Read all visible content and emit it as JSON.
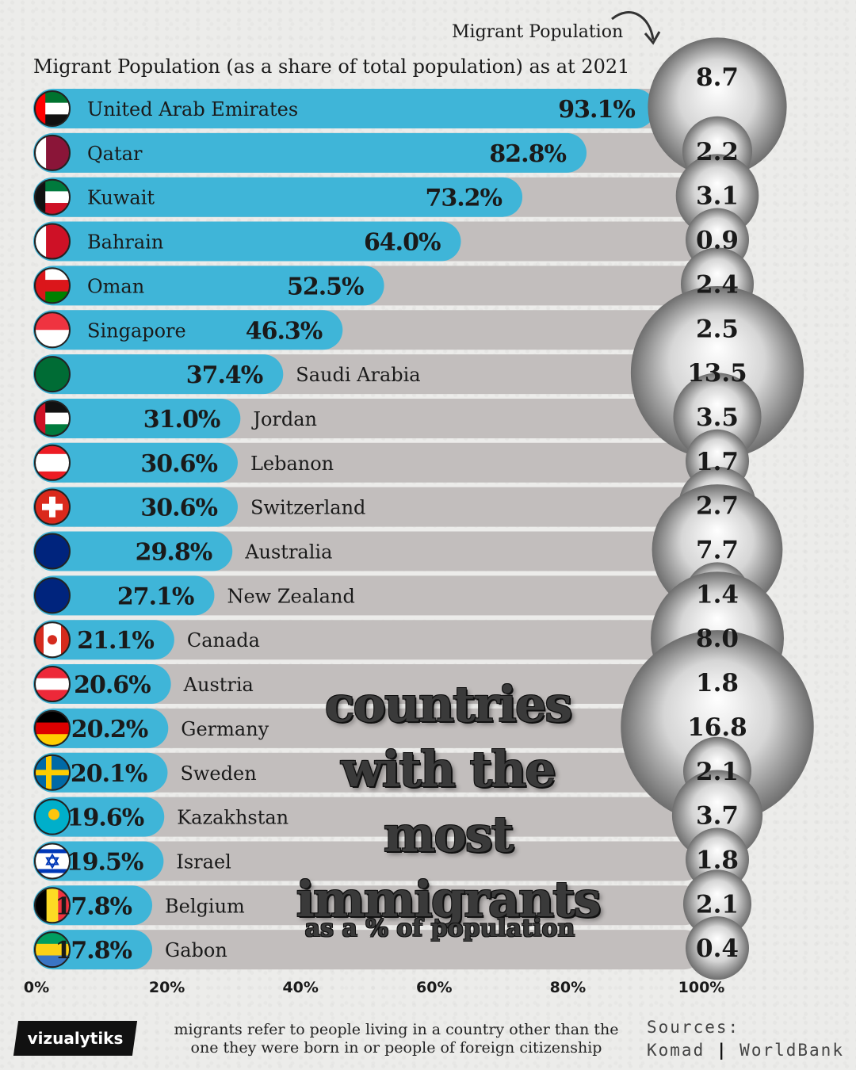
{
  "heading": "Migrant Population (as a share of total population) as at 2021",
  "migrant_population_label": "Migrant Population",
  "title_lines": [
    "countries",
    "with the",
    "most",
    "immigrants"
  ],
  "subtitle": "as a % of population",
  "logo_text": "vizualytiks",
  "footnote": "migrants refer to people living in a country other than the one they were born in or people of foreign citizenship",
  "sources": {
    "label": "Sources:",
    "items": [
      "Komad",
      "WorldBank"
    ]
  },
  "colors": {
    "bar": "#3fb5d8",
    "track": "#c2bebd",
    "track_gap": "#f2f2f0",
    "text": "#1a1a1a",
    "circle_light": "#ffffff",
    "circle_dark": "#6e6e6e"
  },
  "chart_data": {
    "type": "bar",
    "orientation": "horizontal",
    "xlim": [
      0,
      100
    ],
    "x_ticks": [
      "0%",
      "20%",
      "40%",
      "60%",
      "80%",
      "100%"
    ],
    "categories": [
      "United Arab Emirates",
      "Qatar",
      "Kuwait",
      "Bahrain",
      "Oman",
      "Singapore",
      "Saudi Arabia",
      "Jordan",
      "Lebanon",
      "Switzerland",
      "Australia",
      "New Zealand",
      "Canada",
      "Austria",
      "Germany",
      "Sweden",
      "Kazakhstan",
      "Israel",
      "Belgium",
      "Gabon"
    ],
    "values": [
      93.1,
      82.8,
      73.2,
      64.0,
      52.5,
      46.3,
      37.4,
      31.0,
      30.6,
      30.6,
      29.8,
      27.1,
      21.1,
      20.6,
      20.2,
      20.1,
      19.6,
      19.5,
      17.8,
      17.8
    ],
    "value_labels": [
      "93.1%",
      "82.8%",
      "73.2%",
      "64.0%",
      "52.5%",
      "46.3%",
      "37.4%",
      "31.0%",
      "30.6%",
      "30.6%",
      "29.8%",
      "27.1%",
      "21.1%",
      "20.6%",
      "20.2%",
      "20.1%",
      "19.6%",
      "19.5%",
      "17.8%",
      "17.8%"
    ],
    "flags": [
      "uae-flag-icon",
      "qatar-flag-icon",
      "kuwait-flag-icon",
      "bahrain-flag-icon",
      "oman-flag-icon",
      "singapore-flag-icon",
      "saudi-arabia-flag-icon",
      "jordan-flag-icon",
      "lebanon-flag-icon",
      "switzerland-flag-icon",
      "australia-flag-icon",
      "new-zealand-flag-icon",
      "canada-flag-icon",
      "austria-flag-icon",
      "germany-flag-icon",
      "sweden-flag-icon",
      "kazakhstan-flag-icon",
      "israel-flag-icon",
      "belgium-flag-icon",
      "gabon-flag-icon"
    ],
    "migrant_population_millions": [
      8.7,
      2.2,
      3.1,
      0.9,
      2.4,
      2.5,
      13.5,
      3.5,
      1.7,
      2.7,
      7.7,
      1.4,
      8.0,
      1.8,
      16.8,
      2.1,
      3.7,
      1.8,
      2.1,
      0.4
    ],
    "migrant_population_labels": [
      "8.7",
      "2.2",
      "3.1",
      "0.9",
      "2.4",
      "2.5",
      "13.5",
      "3.5",
      "1.7",
      "2.7",
      "7.7",
      "1.4",
      "8.0",
      "1.8",
      "16.8",
      "2.1",
      "3.7",
      "1.8",
      "2.1",
      "0.4"
    ]
  }
}
